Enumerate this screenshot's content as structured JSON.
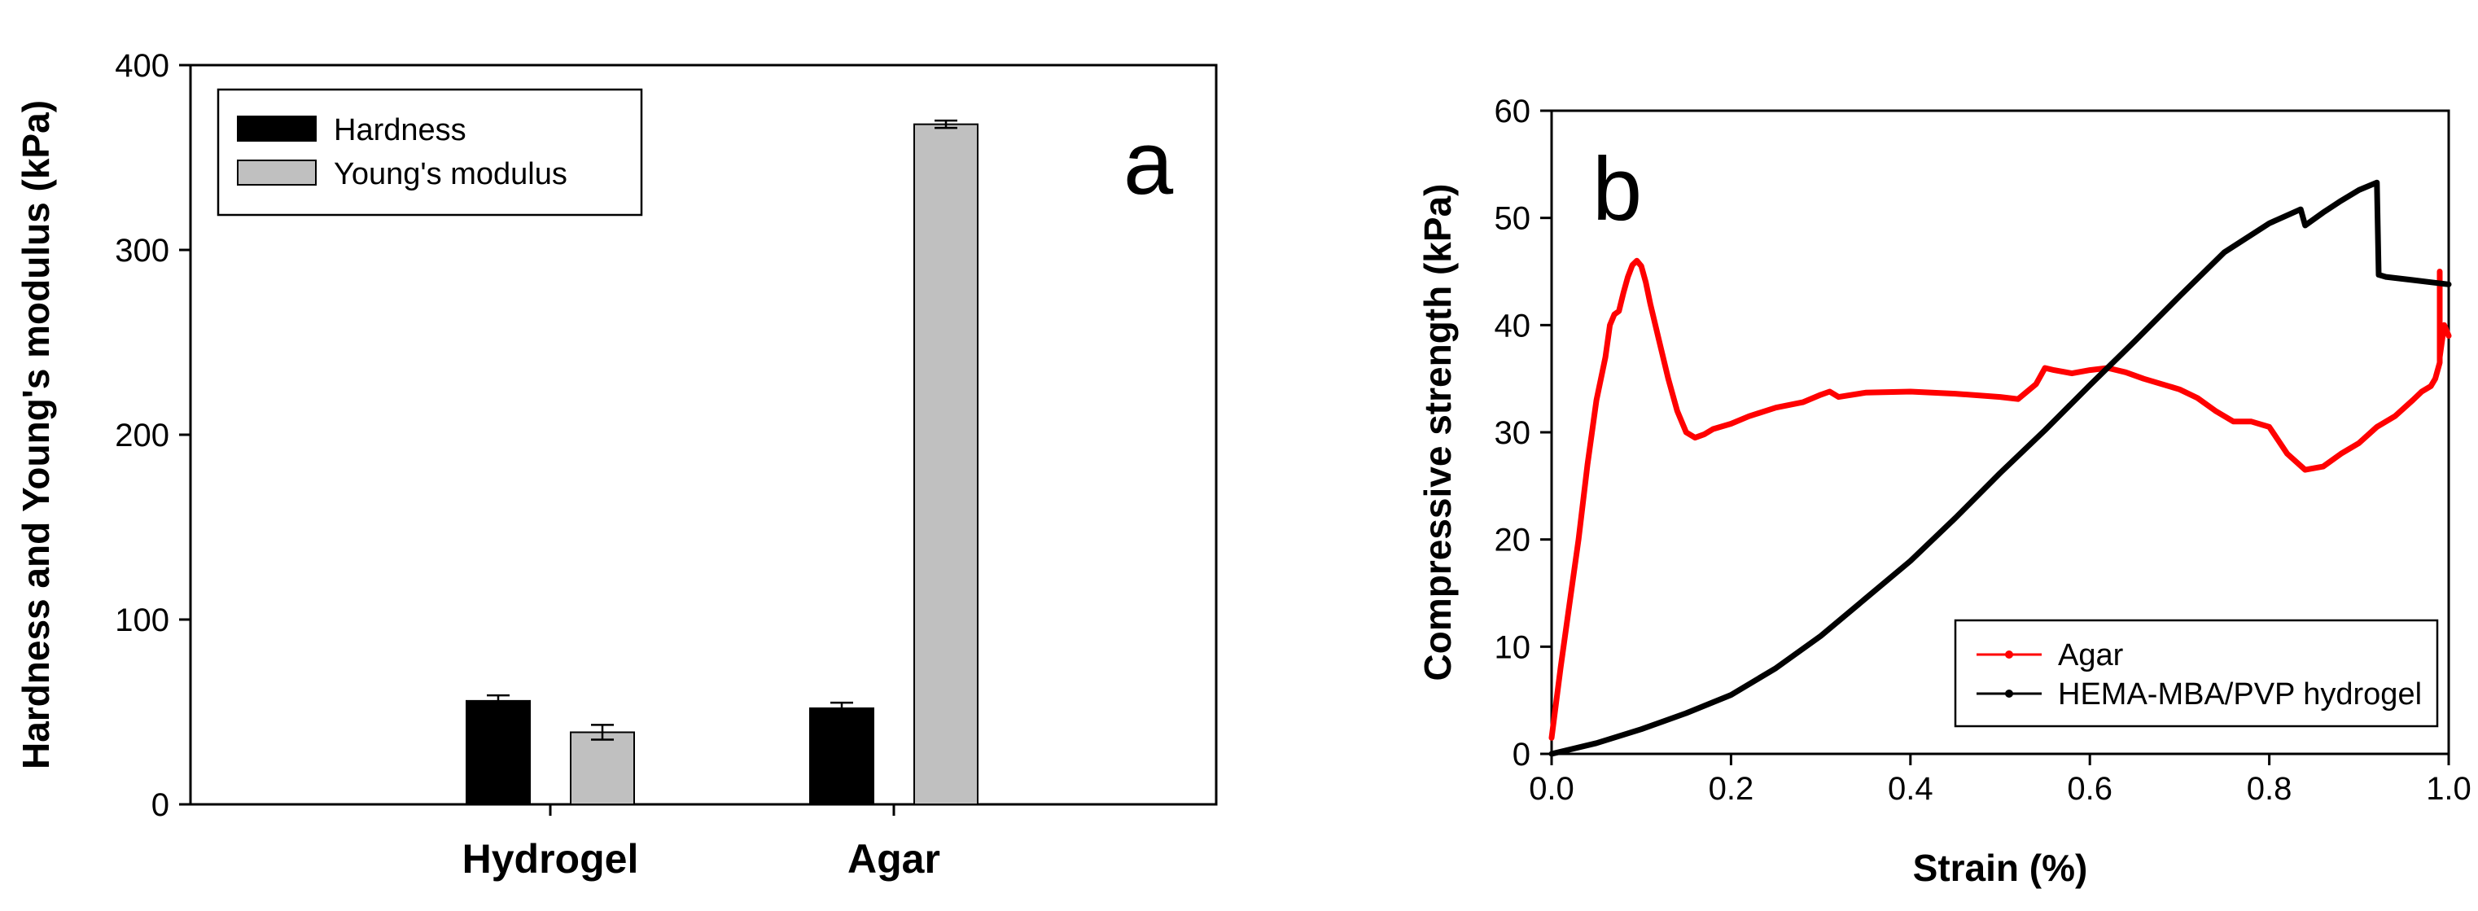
{
  "chart_data": [
    {
      "panel_letter": "a",
      "type": "bar",
      "title": "",
      "xlabel": "",
      "ylabel": "Hardness and Young's modulus (kPa)",
      "ylim": [
        0,
        400
      ],
      "yticks": [
        "0",
        "100",
        "200",
        "300",
        "400"
      ],
      "categories": [
        "Hydrogel",
        "Agar"
      ],
      "series": [
        {
          "name": "Hardness",
          "color": "#000000",
          "values": [
            56,
            52
          ],
          "errors": [
            3,
            3
          ]
        },
        {
          "name": "Young's modulus",
          "color": "#c0c0c0",
          "values": [
            39,
            368
          ],
          "errors": [
            4,
            2
          ]
        }
      ],
      "legend_position": "top-left"
    },
    {
      "panel_letter": "b",
      "type": "line",
      "title": "",
      "xlabel": "Strain (%)",
      "ylabel": "Compressive strength (kPa)",
      "xlim": [
        0,
        1
      ],
      "ylim": [
        0,
        60
      ],
      "xticks": [
        "0.0",
        "0.2",
        "0.4",
        "0.6",
        "0.8",
        "1.0"
      ],
      "yticks": [
        "0",
        "10",
        "20",
        "30",
        "40",
        "50",
        "60"
      ],
      "series": [
        {
          "name": "Agar",
          "color": "#ff0000",
          "x": [
            0.0,
            0.01,
            0.02,
            0.03,
            0.04,
            0.05,
            0.06,
            0.065,
            0.07,
            0.075,
            0.08,
            0.085,
            0.09,
            0.095,
            0.1,
            0.105,
            0.11,
            0.12,
            0.13,
            0.14,
            0.15,
            0.16,
            0.17,
            0.18,
            0.2,
            0.22,
            0.25,
            0.28,
            0.3,
            0.31,
            0.32,
            0.35,
            0.4,
            0.45,
            0.5,
            0.52,
            0.54,
            0.55,
            0.56,
            0.58,
            0.6,
            0.62,
            0.64,
            0.66,
            0.7,
            0.72,
            0.74,
            0.76,
            0.78,
            0.8,
            0.82,
            0.84,
            0.86,
            0.88,
            0.9,
            0.92,
            0.94,
            0.96,
            0.97,
            0.98,
            0.985,
            0.99,
            0.99,
            0.99,
            0.99,
            0.99,
            0.995,
            1.0
          ],
          "y": [
            1.5,
            8,
            14,
            20,
            27,
            33,
            37,
            40,
            41,
            41.3,
            43,
            44.5,
            45.6,
            46,
            45.5,
            44,
            42,
            38.5,
            35,
            32,
            30,
            29.5,
            29.8,
            30.3,
            30.8,
            31.5,
            32.3,
            32.8,
            33.5,
            33.8,
            33.3,
            33.7,
            33.8,
            33.6,
            33.3,
            33.1,
            34.5,
            36,
            35.8,
            35.5,
            35.8,
            36,
            35.6,
            35,
            34,
            33.2,
            32,
            31,
            31,
            30.5,
            28,
            26.5,
            26.8,
            28,
            29,
            30.5,
            31.5,
            33,
            33.8,
            34.3,
            35,
            36.5,
            45,
            38,
            43,
            37,
            40,
            39
          ]
        },
        {
          "name": "HEMA-MBA/PVP hydrogel",
          "color": "#000000",
          "x": [
            0.0,
            0.05,
            0.1,
            0.15,
            0.2,
            0.25,
            0.3,
            0.35,
            0.4,
            0.45,
            0.5,
            0.55,
            0.6,
            0.65,
            0.7,
            0.75,
            0.8,
            0.835,
            0.84,
            0.86,
            0.88,
            0.9,
            0.92,
            0.922,
            0.93,
            0.96,
            0.98,
            1.0
          ],
          "y": [
            0,
            1,
            2.3,
            3.8,
            5.5,
            8,
            11,
            14.5,
            18,
            22,
            26.2,
            30.2,
            34.4,
            38.5,
            42.7,
            46.8,
            49.5,
            50.8,
            49.3,
            50.5,
            51.6,
            52.6,
            53.3,
            44.7,
            44.5,
            44.2,
            44,
            43.8
          ]
        }
      ],
      "legend_position": "bottom-right"
    }
  ]
}
